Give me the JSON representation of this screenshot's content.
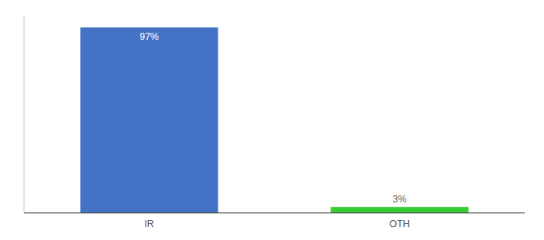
{
  "chart_data": {
    "type": "bar",
    "categories": [
      "IR",
      "OTH"
    ],
    "values": [
      97,
      3
    ],
    "value_labels": [
      "97%",
      "3%"
    ],
    "colors": [
      "#4472c4",
      "#33cc33"
    ],
    "ylim": [
      0,
      103
    ],
    "grid": false,
    "data_labels": true,
    "tick_labels": "x"
  }
}
